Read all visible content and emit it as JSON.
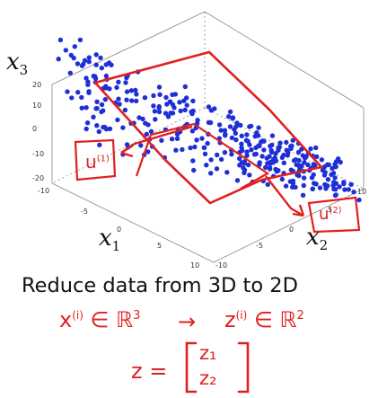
{
  "plot": {
    "axis_labels": {
      "x1": "x",
      "x1_sub": "1",
      "x2": "x",
      "x2_sub": "2",
      "x3": "x",
      "x3_sub": "3"
    },
    "z_ticks": [
      "20",
      "10",
      "0",
      "-10",
      "-20"
    ],
    "x1_ticks": [
      "-10",
      "-5",
      "0",
      "5",
      "10"
    ],
    "x2_ticks": [
      "-10",
      "-5",
      "0",
      "5",
      "10"
    ],
    "point_color": "#1f2fd6",
    "axis_color": "#888888"
  },
  "caption": "Reduce data from 3D to 2D",
  "annotations": {
    "ink_color": "#e02020",
    "u1_label": "u",
    "u1_sup": "(1)",
    "u2_label": "u",
    "u2_sup": "(2)",
    "x_i": "x",
    "x_i_sup": "(i)",
    "in_r3": "∈ ℝ",
    "r3_exp": "3",
    "arrow": "→",
    "z_i": "z",
    "z_i_sup": "(i)",
    "in_r2": "∈ ℝ",
    "r2_exp": "2",
    "z_eq": "z =",
    "z1": "z₁",
    "z2": "z₂"
  }
}
